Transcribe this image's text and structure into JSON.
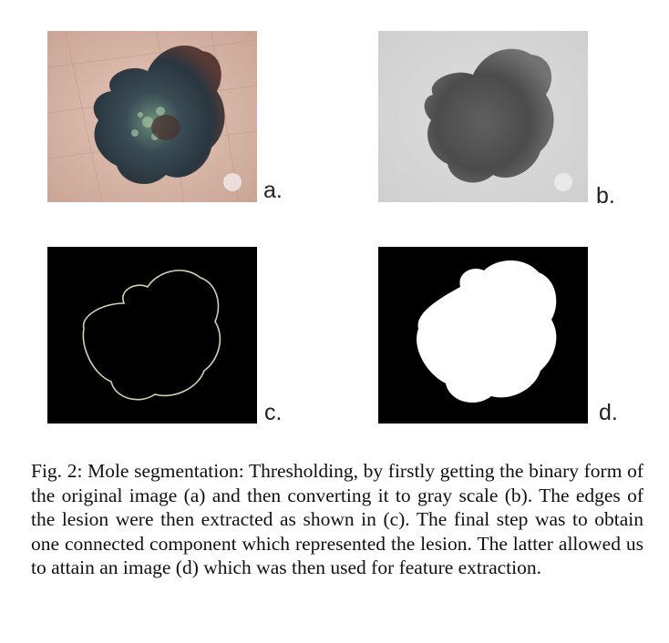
{
  "panels": [
    {
      "label": "a.",
      "kind": "original-photo"
    },
    {
      "label": "b.",
      "kind": "grayscale"
    },
    {
      "label": "c.",
      "kind": "edges"
    },
    {
      "label": "d.",
      "kind": "binary-mask"
    }
  ],
  "caption": "Fig. 2: Mole segmentation: Thresholding, by firstly getting the binary form of the original image (a) and then converting it to gray scale (b). The edges of the lesion were then extracted as shown in (c). The final step was to obtain one connected component which represented the lesion. The latter allowed us to attain an image (d) which was then used for feature extraction.",
  "colors": {
    "skin": "#d9b8a8",
    "mole": "#2f3e48",
    "gray_bg": "#d7d7d7",
    "gray_mole": "#3a3a3a",
    "mask_bg": "#000000",
    "mask_fg": "#ffffff",
    "edge": "#d8d0b0"
  }
}
